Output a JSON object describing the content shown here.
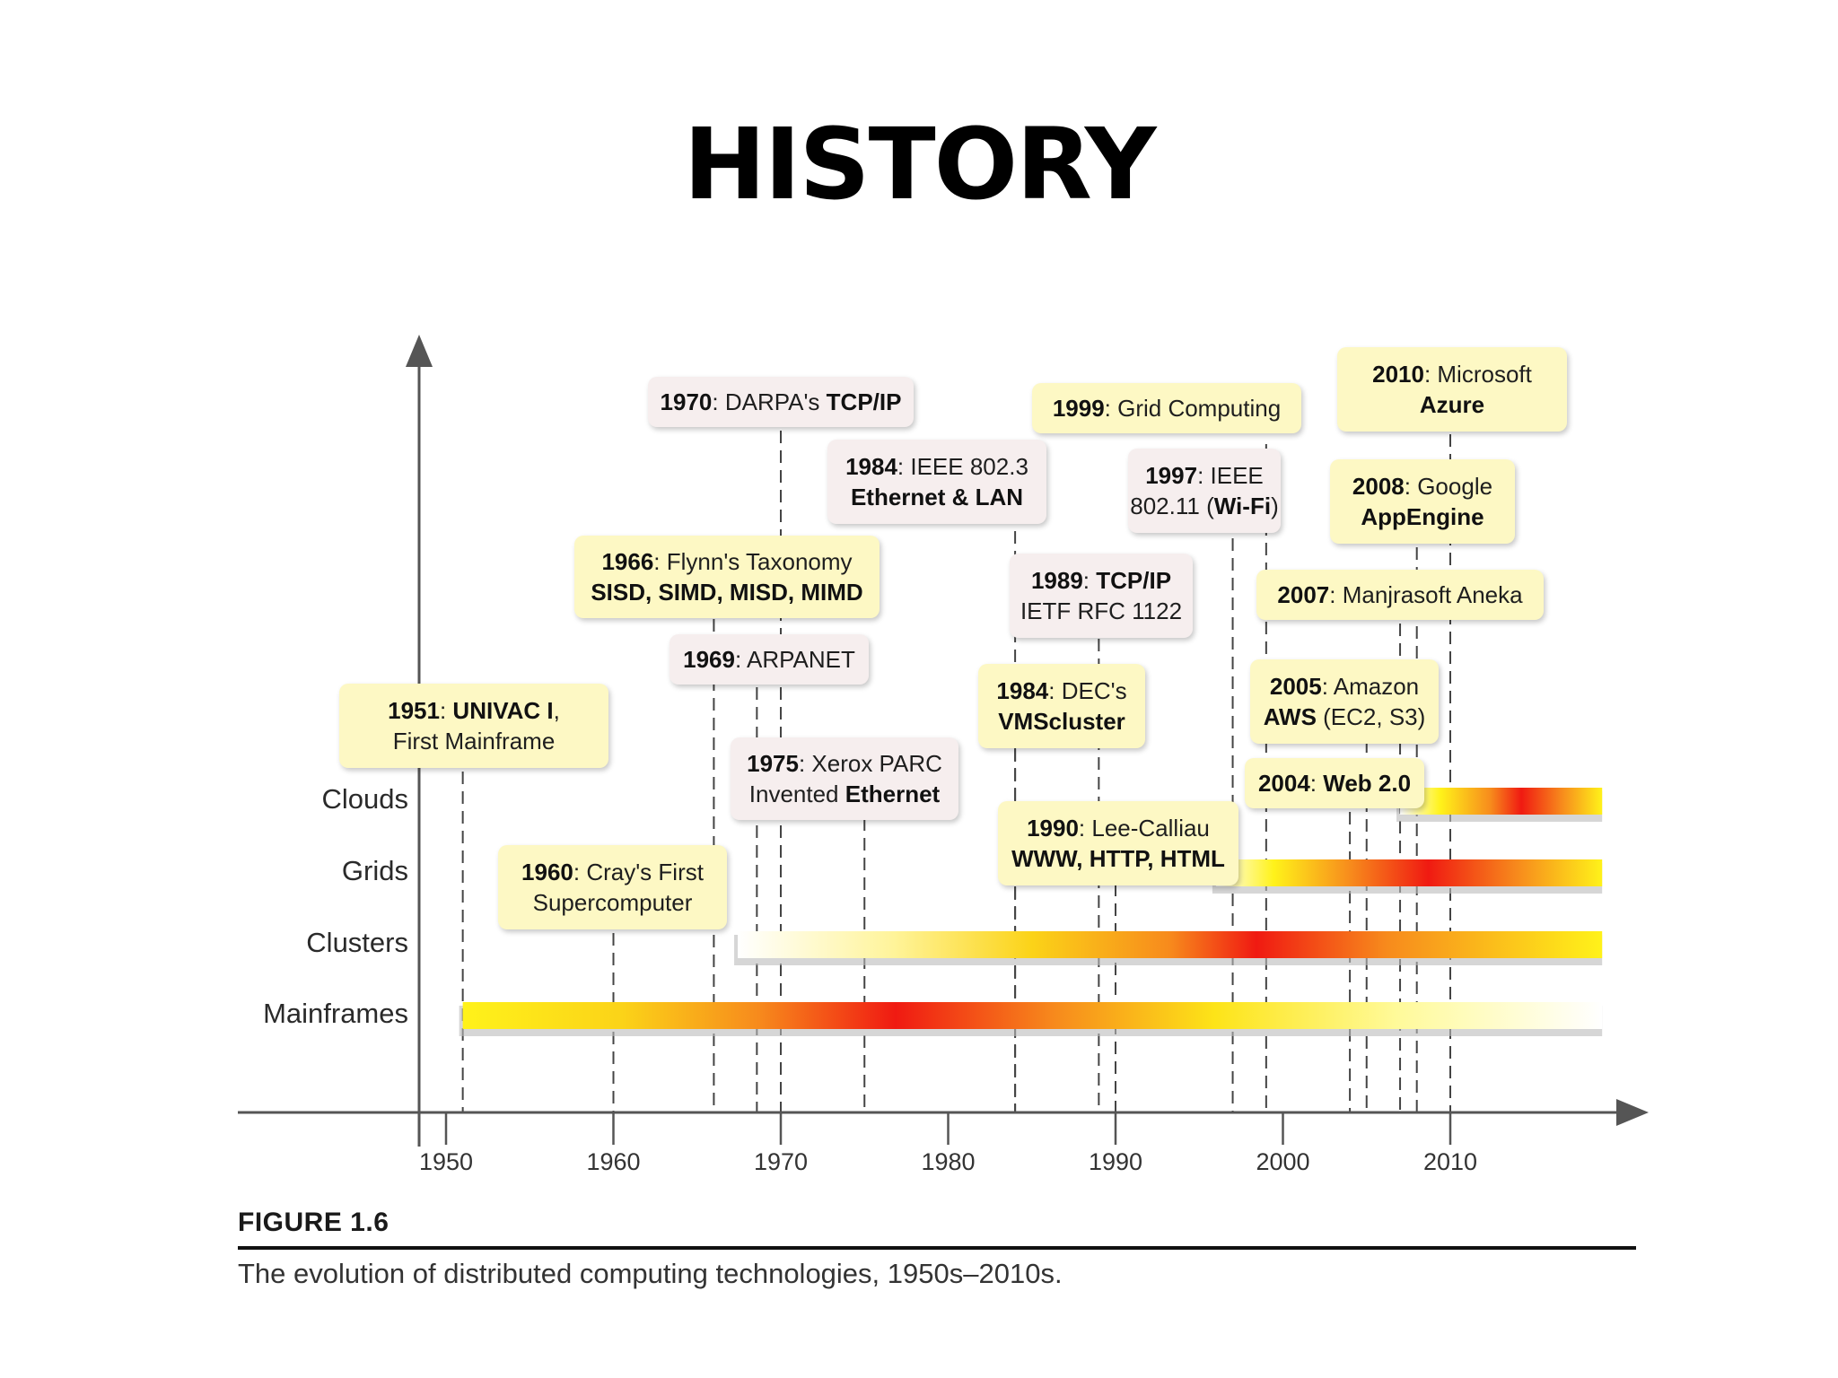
{
  "title": "HISTORY",
  "timeline": {
    "axis_years": [
      1950,
      1960,
      1970,
      1980,
      1990,
      2000,
      2010
    ],
    "year_range": [
      1943,
      2022
    ],
    "rows": [
      {
        "key": "clouds",
        "label": "Clouds",
        "start": 2007,
        "end": 2018
      },
      {
        "key": "grids",
        "label": "Grids",
        "start": 1996,
        "end": 2018
      },
      {
        "key": "clusters",
        "label": "Clusters",
        "start": 1967,
        "end": 2018
      },
      {
        "key": "mainframes",
        "label": "Mainframes",
        "start": 1951,
        "end": 2018
      }
    ],
    "events": [
      {
        "year": 1951,
        "bold": "1951",
        "rest": ":  ",
        "bold2": "UNIVAC I",
        "rest2": ",",
        "line2": "First Mainframe",
        "line2_bold": false,
        "color": "yellow"
      },
      {
        "year": 1960,
        "bold": "1960",
        "rest": ":  Cray's First",
        "line2": "Supercomputer",
        "line2_bold": false,
        "color": "yellow"
      },
      {
        "year": 1966,
        "bold": "1966",
        "rest": ": Flynn's Taxonomy",
        "line2": "SISD, SIMD, MISD, MIMD",
        "line2_bold": true,
        "color": "yellow"
      },
      {
        "year": 1969,
        "bold": "1969",
        "rest": ": ARPANET",
        "color": "pink"
      },
      {
        "year": 1970,
        "bold": "1970",
        "rest": ": DARPA's ",
        "bold2": "TCP/IP",
        "color": "pink"
      },
      {
        "year": 1975,
        "bold": "1975",
        "rest": ":  Xerox PARC",
        "line2": "Invented ",
        "line2_boldpart": "Ethernet",
        "color": "pink"
      },
      {
        "year": 1984,
        "bold": "1984",
        "rest": ": IEEE 802.3",
        "line2": "Ethernet & LAN",
        "line2_bold": true,
        "color": "pink"
      },
      {
        "year": 1984,
        "bold": "1984",
        "rest": ": DEC's",
        "line2": "VMScluster",
        "line2_bold": true,
        "color": "yellow"
      },
      {
        "year": 1989,
        "bold": "1989",
        "rest": ": ",
        "bold2": "TCP/IP",
        "line2": "IETF RFC 1122",
        "line2_bold": false,
        "color": "pink"
      },
      {
        "year": 1990,
        "bold": "1990",
        "rest": ": Lee-Calliau",
        "line2": "WWW, HTTP, HTML",
        "line2_bold": true,
        "color": "yellow"
      },
      {
        "year": 1997,
        "bold": "1997",
        "rest": ": IEEE",
        "line2": "802.11 (",
        "line2_boldpart": "Wi-Fi",
        "line2_tail": ")",
        "color": "pink"
      },
      {
        "year": 1999,
        "bold": "1999",
        "rest": ": Grid Computing",
        "color": "yellow"
      },
      {
        "year": 2004,
        "bold": "2004",
        "rest": ": ",
        "bold2": "Web 2.0",
        "color": "yellow"
      },
      {
        "year": 2005,
        "bold": "2005",
        "rest": ": Amazon",
        "line2": "",
        "line2_boldpart": "AWS",
        "line2_tail": " (EC2, S3)",
        "color": "yellow"
      },
      {
        "year": 2007,
        "bold": "2007",
        "rest": ": Manjrasoft Aneka",
        "color": "yellow"
      },
      {
        "year": 2008,
        "bold": "2008",
        "rest": ": Google",
        "line2": "AppEngine",
        "line2_bold": true,
        "color": "yellow"
      },
      {
        "year": 2010,
        "bold": "2010",
        "rest": ": Microsoft",
        "line2": "Azure",
        "line2_bold": true,
        "color": "yellow"
      }
    ]
  },
  "figure": {
    "label": "FIGURE 1.6",
    "caption": "The evolution of distributed computing technologies, 1950s–2010s."
  },
  "colors": {
    "callout_yellow": "#fdf8c4",
    "callout_pink": "#f6eeee",
    "bar_red": "#f01a12",
    "bar_orange": "#f78a1c",
    "bar_yellow": "#fff21a"
  }
}
